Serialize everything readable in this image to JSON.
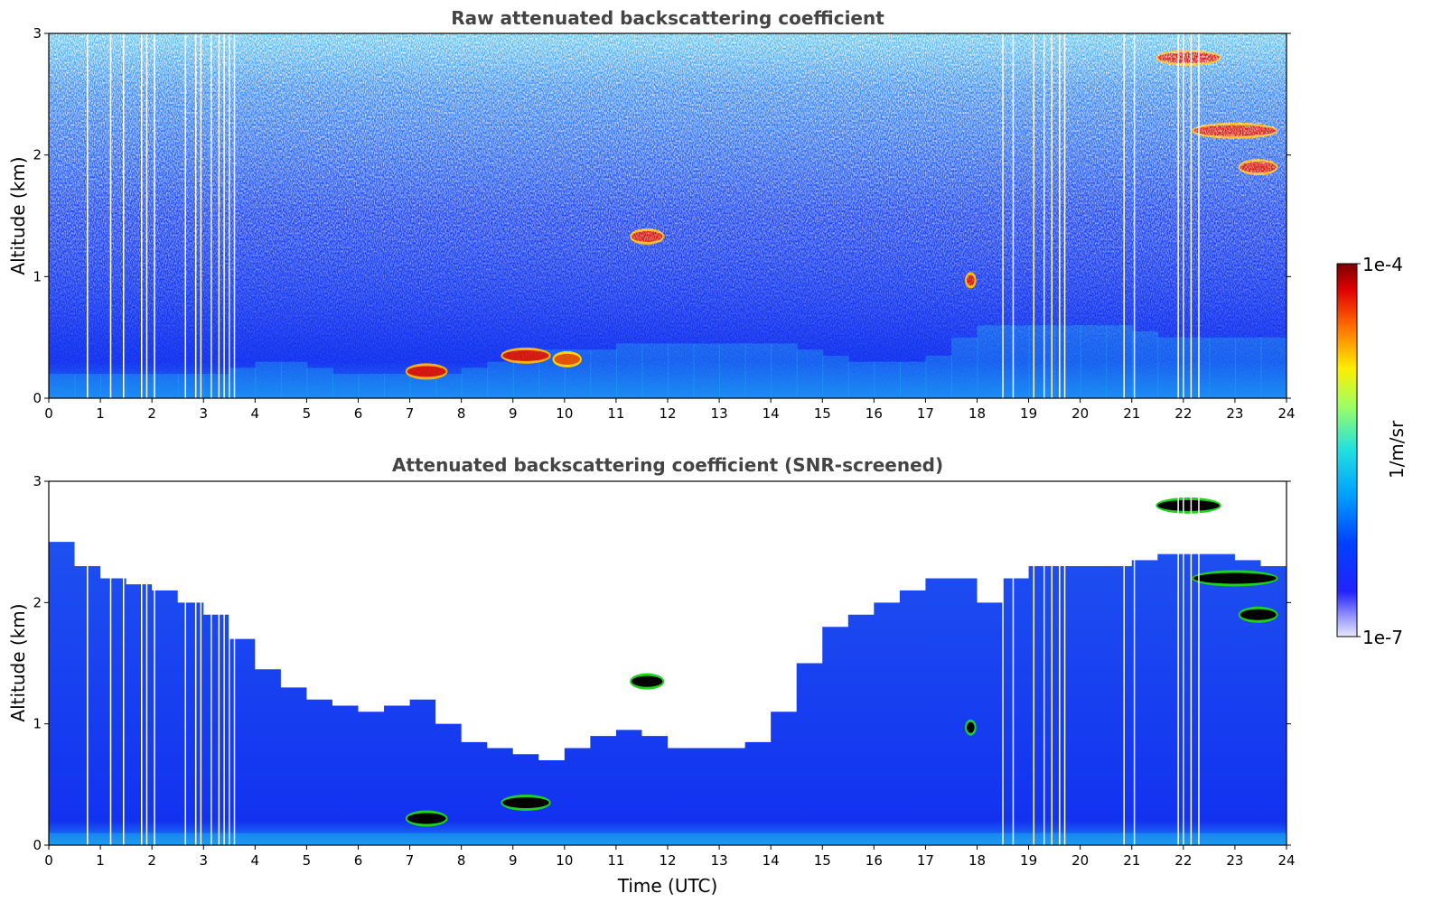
{
  "chart_data": [
    {
      "type": "heatmap",
      "title": "Raw attenuated backscattering coefficient",
      "xlabel": "",
      "ylabel": "Altitude (km)",
      "xlim": [
        0,
        24
      ],
      "ylim": [
        0,
        3
      ],
      "x_ticks": [
        "0",
        "1",
        "2",
        "3",
        "4",
        "5",
        "6",
        "7",
        "8",
        "9",
        "10",
        "11",
        "12",
        "13",
        "14",
        "15",
        "16",
        "17",
        "18",
        "19",
        "20",
        "21",
        "22",
        "23",
        "24"
      ],
      "y_ticks": [
        "0",
        "1",
        "2",
        "3"
      ],
      "x": [
        0,
        0.5,
        1,
        1.5,
        2,
        2.5,
        3,
        3.5,
        4,
        4.5,
        5,
        5.5,
        6,
        6.5,
        7,
        7.5,
        8,
        8.5,
        9,
        9.5,
        10,
        10.5,
        11,
        11.5,
        12,
        12.5,
        13,
        13.5,
        14,
        14.5,
        15,
        15.5,
        16,
        16.5,
        17,
        17.5,
        18,
        18.5,
        19,
        19.5,
        20,
        20.5,
        21,
        21.5,
        22,
        22.5,
        23,
        23.5
      ],
      "boundary_layer_top_km": [
        0.2,
        0.2,
        0.2,
        0.2,
        0.2,
        0.2,
        0.2,
        0.25,
        0.3,
        0.3,
        0.25,
        0.2,
        0.2,
        0.2,
        0.2,
        0.2,
        0.25,
        0.3,
        0.35,
        0.4,
        0.4,
        0.4,
        0.45,
        0.45,
        0.45,
        0.45,
        0.45,
        0.45,
        0.45,
        0.4,
        0.35,
        0.3,
        0.3,
        0.3,
        0.35,
        0.5,
        0.6,
        0.6,
        0.6,
        0.6,
        0.6,
        0.6,
        0.55,
        0.5,
        0.5,
        0.5,
        0.5,
        0.5
      ],
      "cloud_features": [
        {
          "t_start": 6.95,
          "t_end": 7.7,
          "alt_km": 0.22,
          "level": "high"
        },
        {
          "t_start": 8.8,
          "t_end": 9.7,
          "alt_km": 0.35,
          "level": "high"
        },
        {
          "t_start": 9.8,
          "t_end": 10.3,
          "alt_km": 0.32,
          "level": "medium"
        },
        {
          "t_start": 11.3,
          "t_end": 11.9,
          "alt_km": 1.33,
          "level": "high"
        },
        {
          "t_start": 17.8,
          "t_end": 17.95,
          "alt_km": 0.97,
          "level": "high"
        },
        {
          "t_start": 21.5,
          "t_end": 22.7,
          "alt_km": 2.8,
          "level": "high"
        },
        {
          "t_start": 22.2,
          "t_end": 23.8,
          "alt_km": 2.2,
          "level": "high"
        },
        {
          "t_start": 23.1,
          "t_end": 23.8,
          "alt_km": 1.9,
          "level": "high"
        }
      ]
    },
    {
      "type": "heatmap",
      "title": "Attenuated backscattering coefficient (SNR-screened)",
      "xlabel": "Time (UTC)",
      "ylabel": "Altitude (km)",
      "xlim": [
        0,
        24
      ],
      "ylim": [
        0,
        3
      ],
      "x_ticks": [
        "0",
        "1",
        "2",
        "3",
        "4",
        "5",
        "6",
        "7",
        "8",
        "9",
        "10",
        "11",
        "12",
        "13",
        "14",
        "15",
        "16",
        "17",
        "18",
        "19",
        "20",
        "21",
        "22",
        "23",
        "24"
      ],
      "y_ticks": [
        "0",
        "1",
        "2",
        "3"
      ],
      "x": [
        0,
        0.5,
        1,
        1.5,
        2,
        2.5,
        3,
        3.5,
        4,
        4.5,
        5,
        5.5,
        6,
        6.5,
        7,
        7.5,
        8,
        8.5,
        9,
        9.5,
        10,
        10.5,
        11,
        11.5,
        12,
        12.5,
        13,
        13.5,
        14,
        14.5,
        15,
        15.5,
        16,
        16.5,
        17,
        17.5,
        18,
        18.5,
        19,
        19.5,
        20,
        20.5,
        21,
        21.5,
        22,
        22.5,
        23,
        23.5
      ],
      "screened_top_km": [
        2.5,
        2.3,
        2.2,
        2.15,
        2.1,
        2.0,
        1.9,
        1.7,
        1.45,
        1.3,
        1.2,
        1.15,
        1.1,
        1.15,
        1.2,
        1.0,
        0.85,
        0.8,
        0.75,
        0.7,
        0.8,
        0.9,
        0.95,
        0.9,
        0.8,
        0.8,
        0.8,
        0.85,
        1.1,
        1.5,
        1.8,
        1.9,
        2.0,
        2.1,
        2.2,
        2.2,
        2.0,
        2.2,
        2.3,
        2.3,
        2.3,
        2.3,
        2.35,
        2.4,
        2.4,
        2.4,
        2.35,
        2.3
      ],
      "cloud_features": [
        {
          "t_start": 6.95,
          "t_end": 7.7,
          "alt_km": 0.22,
          "level": "saturated"
        },
        {
          "t_start": 8.8,
          "t_end": 9.7,
          "alt_km": 0.35,
          "level": "saturated"
        },
        {
          "t_start": 11.3,
          "t_end": 11.9,
          "alt_km": 1.35,
          "level": "saturated"
        },
        {
          "t_start": 17.8,
          "t_end": 17.95,
          "alt_km": 0.97,
          "level": "saturated"
        },
        {
          "t_start": 21.5,
          "t_end": 22.7,
          "alt_km": 2.8,
          "level": "saturated"
        },
        {
          "t_start": 22.2,
          "t_end": 23.8,
          "alt_km": 2.2,
          "level": "saturated"
        },
        {
          "t_start": 23.1,
          "t_end": 23.8,
          "alt_km": 1.9,
          "level": "saturated"
        }
      ]
    }
  ],
  "colorbar": {
    "label": "1/m/sr",
    "max_label": "1e-4",
    "min_label": "1e-7",
    "colormap": "jet"
  },
  "colors": {
    "background_blue": "#1e3cf5",
    "deep_blue": "#0a14e0",
    "boundary_cyan": "#19b4f0",
    "cloud_red": "#d2140a",
    "cloud_dark": "#780000",
    "saturated": "#000000",
    "title_grey": "#444444"
  }
}
